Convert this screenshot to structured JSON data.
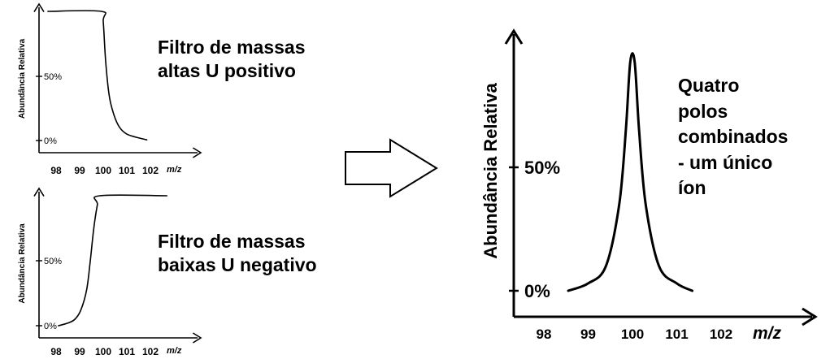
{
  "caption_high": [
    "Filtro de massas",
    "altas U positivo"
  ],
  "caption_low": [
    "Filtro de massas",
    "baixas U negativo"
  ],
  "caption_combined": [
    "Quatro",
    "polos",
    "combinados",
    "- um único",
    "íon"
  ],
  "chart_data": [
    {
      "type": "line",
      "xlabel": "m/z",
      "ylabel": "Abundância Relativa",
      "x_ticks": [
        98,
        99,
        100,
        101,
        102
      ],
      "y_ticks": [
        "50%",
        "0%"
      ],
      "xlim": [
        97.4,
        102.2
      ],
      "ylim": [
        0,
        100
      ],
      "series": [
        {
          "x": [
            97.65,
            99.92,
            100.0,
            100.1,
            100.25,
            100.45,
            100.7,
            101.0,
            101.4,
            101.85
          ],
          "y": [
            100,
            100,
            92,
            62,
            35,
            20,
            10,
            5,
            2.5,
            0.5
          ]
        }
      ]
    },
    {
      "type": "line",
      "xlabel": "m/z",
      "ylabel": "Abundância Relativa",
      "x_ticks": [
        98,
        99,
        100,
        101,
        102
      ],
      "y_ticks": [
        "50%",
        "0%"
      ],
      "xlim": [
        97.4,
        102.2
      ],
      "ylim": [
        0,
        100
      ],
      "series": [
        {
          "x": [
            98.1,
            98.5,
            98.8,
            99.05,
            99.3,
            99.45,
            99.6,
            99.75,
            99.85,
            102.7
          ],
          "y": [
            0,
            2,
            5,
            12,
            28,
            50,
            75,
            93,
            100,
            100
          ]
        }
      ]
    },
    {
      "type": "line",
      "xlabel": "m/z",
      "ylabel": "Abundância Relativa",
      "x_ticks": [
        98,
        99,
        100,
        101,
        102
      ],
      "y_ticks": [
        "50%",
        "0%"
      ],
      "xlim": [
        97.4,
        102.4
      ],
      "ylim": [
        0,
        100
      ],
      "series": [
        {
          "x": [
            98.55,
            99.0,
            99.4,
            99.7,
            99.85,
            99.95,
            100.05,
            100.15,
            100.3,
            100.6,
            101.0,
            101.35
          ],
          "y": [
            0,
            3,
            10,
            35,
            65,
            93,
            93,
            65,
            35,
            10,
            3,
            0
          ]
        }
      ]
    }
  ]
}
